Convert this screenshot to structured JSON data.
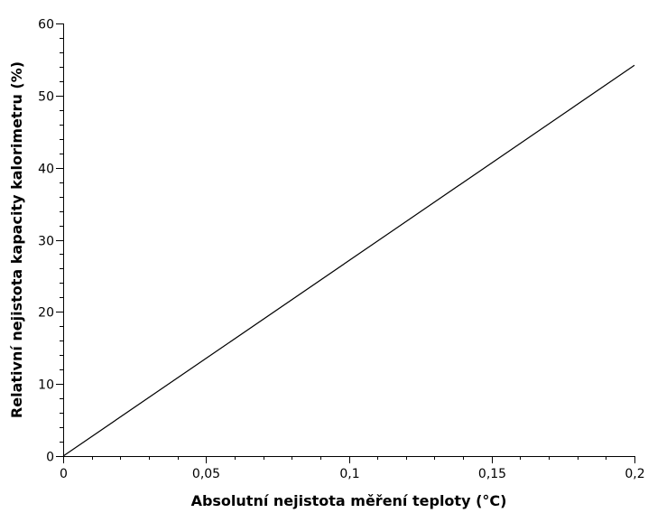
{
  "chart_data": {
    "type": "line",
    "title": "",
    "xlabel": "Absolutní nejistota měření teploty (°C)",
    "ylabel": "Relativní nejistota kapacity kalorimetru (%)",
    "xlim": [
      0,
      0.2
    ],
    "ylim": [
      0,
      60
    ],
    "grid": false,
    "x_ticks": [
      {
        "value": 0,
        "label": "0"
      },
      {
        "value": 0.05,
        "label": "0,05"
      },
      {
        "value": 0.1,
        "label": "0,1"
      },
      {
        "value": 0.15,
        "label": "0,15"
      },
      {
        "value": 0.2,
        "label": "0,2"
      }
    ],
    "y_ticks": [
      {
        "value": 0,
        "label": "0"
      },
      {
        "value": 10,
        "label": "10"
      },
      {
        "value": 20,
        "label": "20"
      },
      {
        "value": 30,
        "label": "30"
      },
      {
        "value": 40,
        "label": "40"
      },
      {
        "value": 50,
        "label": "50"
      },
      {
        "value": 60,
        "label": "60"
      }
    ],
    "x_minor_step": 0.01,
    "y_minor_step": 2,
    "series": [
      {
        "x": [
          0,
          0.2
        ],
        "y": [
          0,
          54.2
        ],
        "color": "#000000"
      }
    ]
  }
}
